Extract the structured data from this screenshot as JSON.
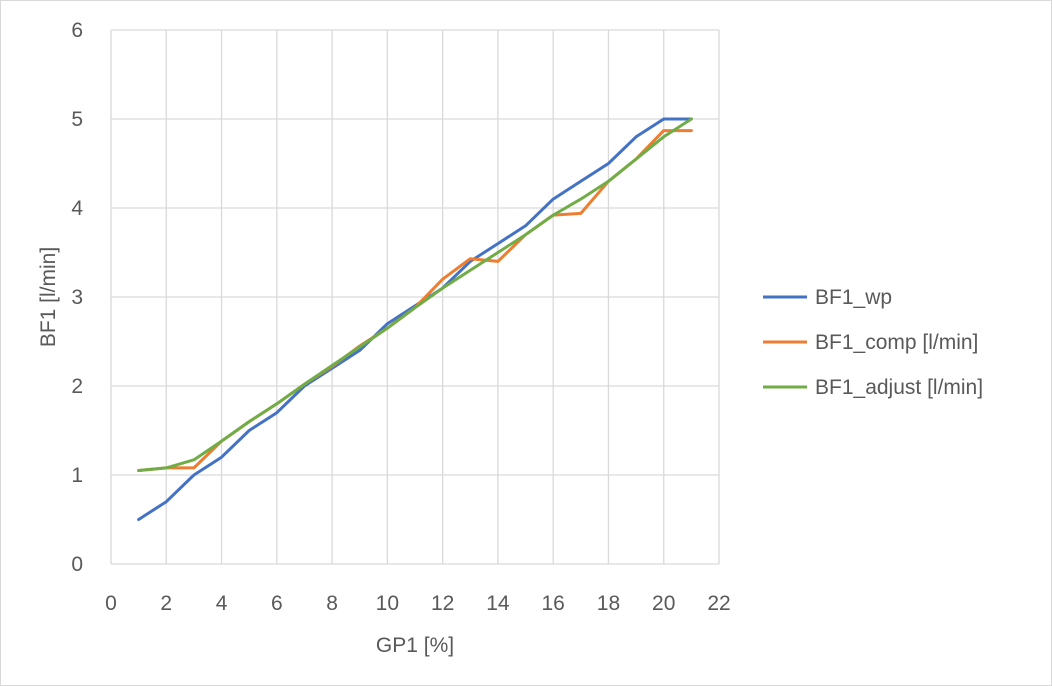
{
  "chart_data": {
    "type": "line",
    "title": "",
    "xlabel": "GP1 [%]",
    "ylabel": "BF1 [l/min]",
    "xlim": [
      0,
      22
    ],
    "ylim": [
      0,
      6
    ],
    "xticks": [
      0,
      2,
      4,
      6,
      8,
      10,
      12,
      14,
      16,
      18,
      20,
      22
    ],
    "yticks": [
      0,
      1,
      2,
      3,
      4,
      5,
      6
    ],
    "grid": true,
    "legend_position": "right",
    "x": [
      1,
      2,
      3,
      4,
      5,
      6,
      7,
      8,
      9,
      10,
      11,
      12,
      13,
      14,
      15,
      16,
      17,
      18,
      19,
      20,
      21
    ],
    "series": [
      {
        "name": "BF1_wp",
        "color": "#4472c4",
        "values": [
          0.5,
          0.7,
          1.0,
          1.2,
          1.5,
          1.7,
          2.0,
          2.2,
          2.4,
          2.7,
          2.9,
          3.1,
          3.4,
          3.6,
          3.8,
          4.1,
          4.3,
          4.5,
          4.8,
          5.0,
          5.0
        ]
      },
      {
        "name": "BF1_comp [l/min]",
        "color": "#ed7d31",
        "values": [
          1.05,
          1.08,
          1.08,
          1.38,
          1.6,
          1.8,
          2.02,
          2.22,
          2.45,
          2.65,
          2.88,
          3.2,
          3.43,
          3.4,
          3.7,
          3.92,
          3.94,
          4.3,
          4.55,
          4.87,
          4.87
        ]
      },
      {
        "name": "BF1_adjust [l/min]",
        "color": "#70ad47",
        "values": [
          1.05,
          1.08,
          1.17,
          1.38,
          1.6,
          1.8,
          2.02,
          2.23,
          2.44,
          2.65,
          2.88,
          3.1,
          3.3,
          3.5,
          3.7,
          3.92,
          4.1,
          4.3,
          4.55,
          4.8,
          5.0
        ]
      }
    ]
  }
}
